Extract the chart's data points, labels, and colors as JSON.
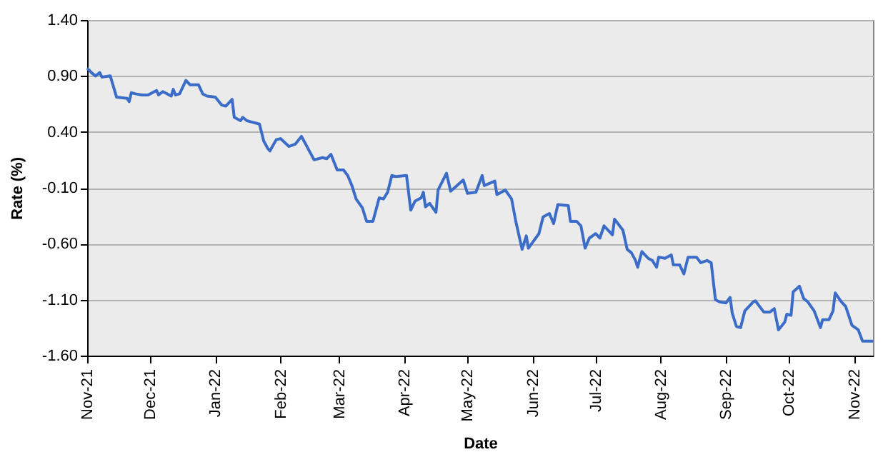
{
  "chart_data": {
    "type": "line",
    "xlabel": "Date",
    "ylabel": "Rate (%)",
    "grid": "y",
    "xlim": [
      "2021-11-01",
      "2022-11-10"
    ],
    "xticks": [
      {
        "value": "2021-11-01",
        "label": "Nov-21"
      },
      {
        "value": "2021-12-01",
        "label": "Dec-21"
      },
      {
        "value": "2022-01-01",
        "label": "Jan-22"
      },
      {
        "value": "2022-02-01",
        "label": "Feb-22"
      },
      {
        "value": "2022-03-01",
        "label": "Mar-22"
      },
      {
        "value": "2022-04-01",
        "label": "Apr-22"
      },
      {
        "value": "2022-05-01",
        "label": "May-22"
      },
      {
        "value": "2022-06-01",
        "label": "Jun-22"
      },
      {
        "value": "2022-07-01",
        "label": "Jul-22"
      },
      {
        "value": "2022-08-01",
        "label": "Aug-22"
      },
      {
        "value": "2022-09-01",
        "label": "Sep-22"
      },
      {
        "value": "2022-10-01",
        "label": "Oct-22"
      },
      {
        "value": "2022-11-01",
        "label": "Nov-22"
      }
    ],
    "ylim": [
      -1.6,
      1.4
    ],
    "yticks": [
      {
        "value": -1.6,
        "label": "-1.60"
      },
      {
        "value": -1.1,
        "label": "-1.10"
      },
      {
        "value": -0.6,
        "label": "-0.60"
      },
      {
        "value": -0.1,
        "label": "-0.10"
      },
      {
        "value": 0.4,
        "label": "0.40"
      },
      {
        "value": 0.9,
        "label": "0.90"
      },
      {
        "value": 1.4,
        "label": "1.40"
      }
    ],
    "x": [
      "2021-11-01",
      "2021-11-03",
      "2021-11-05",
      "2021-11-07",
      "2021-11-08",
      "2021-11-12",
      "2021-11-15",
      "2021-11-20",
      "2021-11-21",
      "2021-11-22",
      "2021-11-24",
      "2021-11-27",
      "2021-11-30",
      "2021-12-04",
      "2021-12-05",
      "2021-12-07",
      "2021-12-11",
      "2021-12-12",
      "2021-12-13",
      "2021-12-15",
      "2021-12-18",
      "2021-12-20",
      "2021-12-24",
      "2021-12-26",
      "2021-12-28",
      "2022-01-01",
      "2022-01-04",
      "2022-01-06",
      "2022-01-09",
      "2022-01-10",
      "2022-01-13",
      "2022-01-14",
      "2022-01-16",
      "2022-01-18",
      "2022-01-22",
      "2022-01-24",
      "2022-01-26",
      "2022-01-27",
      "2022-01-30",
      "2022-02-01",
      "2022-02-05",
      "2022-02-08",
      "2022-02-11",
      "2022-02-13",
      "2022-02-17",
      "2022-02-21",
      "2022-02-23",
      "2022-02-25",
      "2022-02-28",
      "2022-03-03",
      "2022-03-05",
      "2022-03-07",
      "2022-03-09",
      "2022-03-12",
      "2022-03-14",
      "2022-03-17",
      "2022-03-20",
      "2022-03-22",
      "2022-03-24",
      "2022-03-26",
      "2022-03-28",
      "2022-04-02",
      "2022-04-04",
      "2022-04-06",
      "2022-04-09",
      "2022-04-10",
      "2022-04-11",
      "2022-04-13",
      "2022-04-16",
      "2022-04-17",
      "2022-04-21",
      "2022-04-23",
      "2022-04-29",
      "2022-05-01",
      "2022-05-05",
      "2022-05-08",
      "2022-05-09",
      "2022-05-14",
      "2022-05-15",
      "2022-05-19",
      "2022-05-22",
      "2022-05-24",
      "2022-05-27",
      "2022-05-29",
      "2022-05-30",
      "2022-06-04",
      "2022-06-06",
      "2022-06-09",
      "2022-06-11",
      "2022-06-13",
      "2022-06-18",
      "2022-06-19",
      "2022-06-22",
      "2022-06-24",
      "2022-06-26",
      "2022-06-28",
      "2022-07-01",
      "2022-07-03",
      "2022-07-05",
      "2022-07-07",
      "2022-07-09",
      "2022-07-10",
      "2022-07-14",
      "2022-07-16",
      "2022-07-18",
      "2022-07-20",
      "2022-07-21",
      "2022-07-23",
      "2022-07-26",
      "2022-07-28",
      "2022-07-30",
      "2022-07-31",
      "2022-08-03",
      "2022-08-06",
      "2022-08-07",
      "2022-08-10",
      "2022-08-12",
      "2022-08-14",
      "2022-08-18",
      "2022-08-20",
      "2022-08-23",
      "2022-08-25",
      "2022-08-27",
      "2022-08-29",
      "2022-09-01",
      "2022-09-03",
      "2022-09-04",
      "2022-09-06",
      "2022-09-08",
      "2022-09-10",
      "2022-09-14",
      "2022-09-15",
      "2022-09-19",
      "2022-09-22",
      "2022-09-24",
      "2022-09-26",
      "2022-09-29",
      "2022-09-30",
      "2022-10-02",
      "2022-10-03",
      "2022-10-06",
      "2022-10-08",
      "2022-10-10",
      "2022-10-13",
      "2022-10-16",
      "2022-10-17",
      "2022-10-20",
      "2022-10-22",
      "2022-10-23",
      "2022-10-26",
      "2022-10-28",
      "2022-10-31",
      "2022-11-03",
      "2022-11-05",
      "2022-11-10"
    ],
    "series": [
      {
        "color": "#3a6cc8",
        "values": [
          0.97,
          0.93,
          0.9,
          0.93,
          0.89,
          0.9,
          0.71,
          0.7,
          0.67,
          0.75,
          0.74,
          0.73,
          0.73,
          0.77,
          0.73,
          0.76,
          0.72,
          0.78,
          0.73,
          0.74,
          0.86,
          0.82,
          0.82,
          0.74,
          0.72,
          0.71,
          0.64,
          0.63,
          0.69,
          0.53,
          0.5,
          0.53,
          0.5,
          0.49,
          0.47,
          0.32,
          0.25,
          0.23,
          0.33,
          0.34,
          0.27,
          0.29,
          0.36,
          0.29,
          0.15,
          0.17,
          0.16,
          0.2,
          0.06,
          0.06,
          0.01,
          -0.08,
          -0.2,
          -0.28,
          -0.4,
          -0.4,
          -0.19,
          -0.2,
          -0.14,
          0.01,
          0.0,
          0.01,
          -0.3,
          -0.22,
          -0.19,
          -0.14,
          -0.27,
          -0.24,
          -0.32,
          -0.12,
          0.03,
          -0.13,
          -0.03,
          -0.15,
          -0.14,
          0.01,
          -0.08,
          -0.04,
          -0.16,
          -0.12,
          -0.2,
          -0.4,
          -0.65,
          -0.53,
          -0.64,
          -0.51,
          -0.36,
          -0.33,
          -0.42,
          -0.25,
          -0.26,
          -0.4,
          -0.4,
          -0.44,
          -0.64,
          -0.55,
          -0.51,
          -0.55,
          -0.44,
          -0.48,
          -0.52,
          -0.38,
          -0.48,
          -0.65,
          -0.68,
          -0.75,
          -0.81,
          -0.67,
          -0.73,
          -0.75,
          -0.81,
          -0.72,
          -0.73,
          -0.7,
          -0.79,
          -0.79,
          -0.87,
          -0.72,
          -0.72,
          -0.77,
          -0.75,
          -0.77,
          -1.1,
          -1.12,
          -1.13,
          -1.08,
          -1.22,
          -1.34,
          -1.35,
          -1.2,
          -1.12,
          -1.11,
          -1.21,
          -1.21,
          -1.18,
          -1.37,
          -1.3,
          -1.23,
          -1.24,
          -1.03,
          -0.98,
          -1.09,
          -1.12,
          -1.2,
          -1.35,
          -1.28,
          -1.28,
          -1.2,
          -1.04,
          -1.12,
          -1.16,
          -1.33,
          -1.37,
          -1.47,
          -1.47
        ]
      }
    ],
    "line_style": "solid",
    "marker": "none"
  }
}
